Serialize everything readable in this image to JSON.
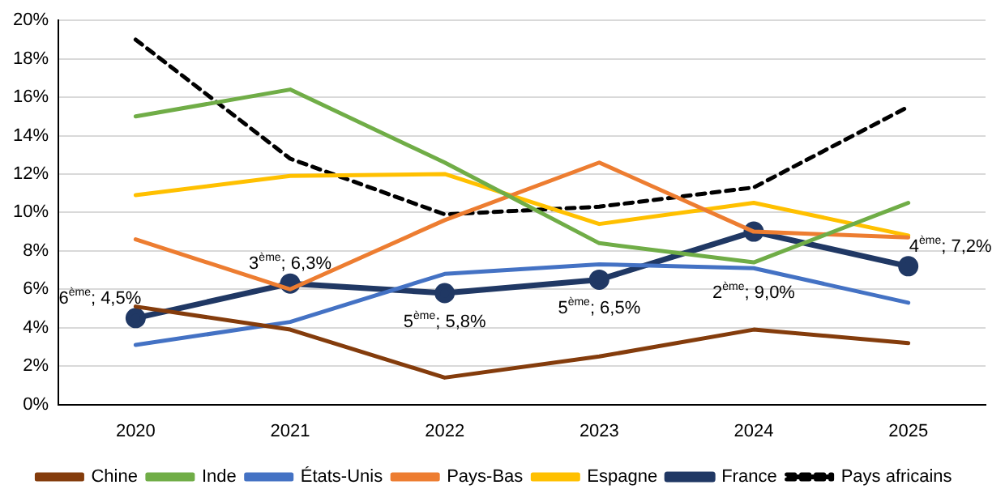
{
  "chart_data": {
    "type": "line",
    "categories": [
      "2020",
      "2021",
      "2022",
      "2023",
      "2024",
      "2025"
    ],
    "series": [
      {
        "name": "Chine",
        "color": "#843c0c",
        "values": [
          5.1,
          3.9,
          1.4,
          2.5,
          3.9,
          3.2
        ]
      },
      {
        "name": "Inde",
        "color": "#70ad47",
        "values": [
          15.0,
          16.4,
          12.6,
          8.4,
          7.4,
          10.5
        ]
      },
      {
        "name": "États-Unis",
        "color": "#4472c4",
        "values": [
          3.1,
          4.3,
          6.8,
          7.3,
          7.1,
          5.3
        ]
      },
      {
        "name": "Pays-Bas",
        "color": "#ed7d31",
        "values": [
          8.6,
          6.0,
          9.6,
          12.6,
          9.0,
          8.7
        ]
      },
      {
        "name": "Espagne",
        "color": "#ffc000",
        "values": [
          10.9,
          11.9,
          12.0,
          9.4,
          10.5,
          8.8
        ]
      },
      {
        "name": "France",
        "color": "#203864",
        "values": [
          4.5,
          6.3,
          5.8,
          6.5,
          9.0,
          7.2
        ],
        "marker": "circle"
      },
      {
        "name": "Pays africains",
        "color": "#000000",
        "values": [
          19.0,
          12.8,
          9.9,
          10.3,
          11.3,
          15.5
        ],
        "line_style": "dashed"
      }
    ],
    "ylim": [
      0,
      20
    ],
    "yticks": [
      {
        "value": 0,
        "label": "0%"
      },
      {
        "value": 2,
        "label": "2%"
      },
      {
        "value": 4,
        "label": "4%"
      },
      {
        "value": 6,
        "label": "6%"
      },
      {
        "value": 8,
        "label": "8%"
      },
      {
        "value": 10,
        "label": "10%"
      },
      {
        "value": 12,
        "label": "12%"
      },
      {
        "value": 14,
        "label": "14%"
      },
      {
        "value": 16,
        "label": "16%"
      },
      {
        "value": 18,
        "label": "18%"
      },
      {
        "value": 20,
        "label": "20%"
      }
    ],
    "grid": "y",
    "legend": "bottom",
    "marker": "none",
    "line_style": "solid",
    "annotations": [
      {
        "text": "6$^{ème}$; 4,5%",
        "x": "2020",
        "y": 4.5
      },
      {
        "text": "3$^{ème}$; 6,3%",
        "x": "2021",
        "y": 6.3
      },
      {
        "text": "5$^{ème}$; 5,8%",
        "x": "2022",
        "y": 5.8
      },
      {
        "text": "5$^{ème}$; 6,5%",
        "x": "2023",
        "y": 6.5
      },
      {
        "text": "2$^{ème}$; 9,0%",
        "x": "2024",
        "y": 9.0
      },
      {
        "text": "4$^{ème}$; 7,2%",
        "x": "2025",
        "y": 7.2
      }
    ]
  }
}
